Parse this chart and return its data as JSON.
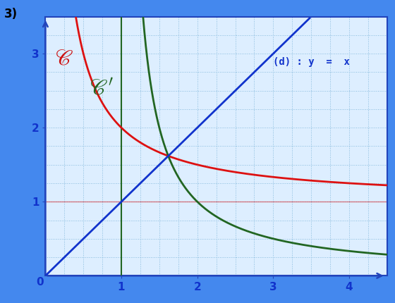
{
  "title_label": "3)",
  "line_d_label": "(d) : y  =  x",
  "xlim": [
    0,
    4.5
  ],
  "ylim": [
    0,
    3.5
  ],
  "xticks": [
    1,
    2,
    3,
    4
  ],
  "yticks": [
    1,
    2,
    3
  ],
  "bg_outer": "#4488ee",
  "bg_inner": "#ddeeff",
  "grid_color": "#88bbdd",
  "axis_color": "#2244bb",
  "red_color": "#dd1111",
  "green_color": "#226622",
  "blue_color": "#1133cc",
  "tick_label_color": "#1133cc",
  "red_label_color": "#cc1111",
  "green_label_color": "#226622",
  "annot_color": "#1133cc",
  "zero_label": "0",
  "grid_minor_step": 0.25,
  "grid_major_step": 1.0
}
